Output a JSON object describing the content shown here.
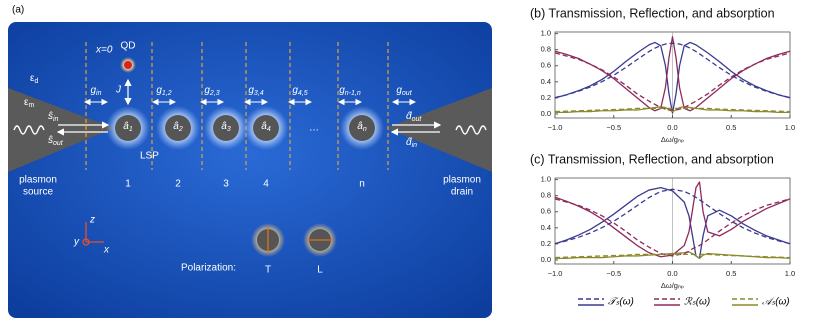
{
  "diagram": {
    "panel_label": "(a)",
    "x0": "x=0",
    "qd": "QD",
    "j": "J",
    "eps_d": {
      "main": "ε",
      "sub": "d"
    },
    "eps_m": {
      "main": "ε",
      "sub": "m"
    },
    "s_in": {
      "main": "ŝ",
      "sub": "in"
    },
    "s_out": {
      "main": "ŝ",
      "sub": "out"
    },
    "couplings": [
      {
        "main": "g",
        "sub": "in"
      },
      {
        "main": "g",
        "sub": "1,2"
      },
      {
        "main": "g",
        "sub": "2,3"
      },
      {
        "main": "g",
        "sub": "3,4"
      },
      {
        "main": "g",
        "sub": "4,5"
      },
      {
        "main": "g",
        "sub": "n-1,n"
      },
      {
        "main": "g",
        "sub": "out"
      }
    ],
    "sites": [
      {
        "main": "â",
        "sub": "1"
      },
      {
        "main": "â",
        "sub": "2"
      },
      {
        "main": "â",
        "sub": "3"
      },
      {
        "main": "â",
        "sub": "4"
      },
      {
        "main": "â",
        "sub": "n"
      }
    ],
    "ellipsis": "…",
    "lsp": "LSP",
    "d_out": {
      "main": "d̂",
      "sub": "out"
    },
    "d_in": {
      "main": "d̂",
      "sub": "in"
    },
    "source": [
      "plasmon",
      "source"
    ],
    "drain": [
      "plasmon",
      "drain"
    ],
    "site_numbers": [
      "1",
      "2",
      "3",
      "4",
      "n"
    ],
    "axes": {
      "z": "z",
      "y": "y",
      "x": "x"
    },
    "polarization": "Polarization:",
    "pol_t": "T",
    "pol_l": "L"
  },
  "chart_data": [
    {
      "type": "line",
      "title": "(b) Transmission, Reflection, and absorption",
      "xlabel": "Δω/gₙₚ",
      "x": [
        -1,
        -0.9,
        -0.8,
        -0.7,
        -0.6,
        -0.5,
        -0.4,
        -0.3,
        -0.2,
        -0.15,
        -0.1,
        -0.06,
        -0.03,
        0,
        0.03,
        0.06,
        0.1,
        0.15,
        0.2,
        0.3,
        0.4,
        0.5,
        0.6,
        0.7,
        0.8,
        0.9,
        1
      ],
      "xlim": [
        -1,
        1
      ],
      "ylim": [
        -0.05,
        1.02
      ],
      "zero_line": true,
      "xticks": [
        {
          "value": -1,
          "label": "−1.0"
        },
        {
          "value": -0.5,
          "label": "−0.5"
        },
        {
          "value": 0,
          "label": "0.0"
        },
        {
          "value": 0.5,
          "label": "0.5"
        },
        {
          "value": 1,
          "label": "1.0"
        }
      ],
      "yticks": [
        {
          "value": 0,
          "label": "0.0"
        },
        0.2,
        0.4,
        0.6,
        0.8,
        {
          "value": 1,
          "label": "1.0"
        }
      ],
      "series": [
        {
          "name": "𝒯ₛ(ω)",
          "color": "#3a3a90",
          "dashed": false,
          "values": [
            0.2,
            0.24,
            0.29,
            0.35,
            0.43,
            0.53,
            0.65,
            0.76,
            0.86,
            0.89,
            0.85,
            0.6,
            0.25,
            0.01,
            0.25,
            0.6,
            0.85,
            0.89,
            0.86,
            0.76,
            0.65,
            0.53,
            0.43,
            0.35,
            0.29,
            0.24,
            0.2
          ]
        },
        {
          "name": "ℛₛ(ω)",
          "color": "#8e2a5c",
          "dashed": false,
          "values": [
            0.78,
            0.74,
            0.69,
            0.62,
            0.54,
            0.44,
            0.32,
            0.2,
            0.08,
            0.04,
            0.07,
            0.33,
            0.7,
            0.96,
            0.7,
            0.33,
            0.07,
            0.04,
            0.08,
            0.2,
            0.32,
            0.44,
            0.54,
            0.62,
            0.69,
            0.74,
            0.78
          ]
        },
        {
          "name": "𝒜ₛ(ω)",
          "color": "#8c8a2e",
          "dashed": false,
          "values": [
            0.02,
            0.02,
            0.03,
            0.03,
            0.04,
            0.04,
            0.05,
            0.05,
            0.07,
            0.08,
            0.09,
            0.08,
            0.05,
            0.03,
            0.05,
            0.08,
            0.09,
            0.08,
            0.07,
            0.05,
            0.05,
            0.04,
            0.04,
            0.03,
            0.03,
            0.02,
            0.02
          ]
        },
        {
          "color": "#3a3a90",
          "dashed": true,
          "values": [
            0.204,
            0.239,
            0.282,
            0.336,
            0.402,
            0.482,
            0.576,
            0.678,
            0.777,
            0.819,
            0.852,
            0.87,
            0.877,
            0.88,
            0.877,
            0.87,
            0.852,
            0.819,
            0.777,
            0.678,
            0.576,
            0.482,
            0.402,
            0.336,
            0.282,
            0.239,
            0.204
          ]
        },
        {
          "color": "#8e2a5c",
          "dashed": true,
          "values": [
            0.76,
            0.72,
            0.68,
            0.62,
            0.55,
            0.46,
            0.36,
            0.25,
            0.16,
            0.12,
            0.08,
            0.06,
            0.05,
            0.05,
            0.05,
            0.06,
            0.08,
            0.12,
            0.16,
            0.25,
            0.36,
            0.46,
            0.55,
            0.62,
            0.68,
            0.72,
            0.76
          ]
        },
        {
          "color": "#8c8a2e",
          "dashed": true,
          "values": [
            0.03,
            0.035,
            0.04,
            0.045,
            0.05,
            0.055,
            0.06,
            0.07,
            0.07,
            0.07,
            0.07,
            0.07,
            0.07,
            0.07,
            0.07,
            0.07,
            0.07,
            0.07,
            0.07,
            0.07,
            0.06,
            0.055,
            0.05,
            0.045,
            0.04,
            0.035,
            0.03
          ]
        }
      ]
    },
    {
      "type": "line",
      "title": "(c) Transmission, Reflection, and absorption",
      "xlabel": "Δω/gₙₚ",
      "x": [
        -1,
        -0.9,
        -0.8,
        -0.7,
        -0.6,
        -0.5,
        -0.4,
        -0.3,
        -0.2,
        -0.1,
        0,
        0.1,
        0.14,
        0.17,
        0.2,
        0.23,
        0.26,
        0.3,
        0.4,
        0.5,
        0.6,
        0.7,
        0.8,
        0.9,
        1
      ],
      "xlim": [
        -1,
        1
      ],
      "ylim": [
        -0.05,
        1.02
      ],
      "zero_line": true,
      "xticks": [
        {
          "value": -1,
          "label": "−1.0"
        },
        {
          "value": -0.5,
          "label": "−0.5"
        },
        {
          "value": 0,
          "label": "0.0"
        },
        {
          "value": 0.5,
          "label": "0.5"
        },
        {
          "value": 1,
          "label": "1.0"
        }
      ],
      "yticks": [
        {
          "value": 0,
          "label": "0.0"
        },
        0.2,
        0.4,
        0.6,
        0.8,
        {
          "value": 1,
          "label": "1.0"
        }
      ],
      "series": [
        {
          "color": "#3a3a90",
          "dashed": false,
          "values": [
            0.2,
            0.25,
            0.31,
            0.38,
            0.47,
            0.57,
            0.68,
            0.79,
            0.87,
            0.9,
            0.86,
            0.72,
            0.55,
            0.3,
            0.05,
            0.02,
            0.3,
            0.55,
            0.62,
            0.55,
            0.45,
            0.37,
            0.3,
            0.25,
            0.2
          ]
        },
        {
          "color": "#8e2a5c",
          "dashed": false,
          "values": [
            0.78,
            0.73,
            0.67,
            0.6,
            0.51,
            0.4,
            0.29,
            0.18,
            0.09,
            0.04,
            0.06,
            0.18,
            0.35,
            0.62,
            0.9,
            0.97,
            0.6,
            0.35,
            0.3,
            0.38,
            0.48,
            0.56,
            0.64,
            0.7,
            0.76
          ]
        },
        {
          "color": "#8c8a2e",
          "dashed": false,
          "values": [
            0.02,
            0.02,
            0.03,
            0.03,
            0.03,
            0.04,
            0.05,
            0.05,
            0.06,
            0.07,
            0.08,
            0.09,
            0.1,
            0.08,
            0.05,
            0.02,
            0.06,
            0.08,
            0.07,
            0.06,
            0.05,
            0.04,
            0.03,
            0.03,
            0.02
          ]
        },
        {
          "color": "#3a3a90",
          "dashed": true,
          "values": [
            0.204,
            0.239,
            0.282,
            0.336,
            0.402,
            0.482,
            0.576,
            0.678,
            0.777,
            0.852,
            0.88,
            0.852,
            0.826,
            0.803,
            0.777,
            0.749,
            0.719,
            0.678,
            0.576,
            0.482,
            0.402,
            0.336,
            0.282,
            0.239,
            0.204
          ]
        },
        {
          "color": "#8e2a5c",
          "dashed": true,
          "values": [
            0.76,
            0.72,
            0.68,
            0.62,
            0.55,
            0.46,
            0.36,
            0.25,
            0.16,
            0.08,
            0.05,
            0.08,
            0.11,
            0.14,
            0.16,
            0.18,
            0.21,
            0.25,
            0.36,
            0.46,
            0.55,
            0.62,
            0.68,
            0.72,
            0.76
          ]
        },
        {
          "color": "#8c8a2e",
          "dashed": true,
          "values": [
            0.03,
            0.035,
            0.04,
            0.045,
            0.05,
            0.055,
            0.06,
            0.07,
            0.07,
            0.07,
            0.07,
            0.07,
            0.07,
            0.07,
            0.07,
            0.07,
            0.07,
            0.07,
            0.06,
            0.055,
            0.05,
            0.045,
            0.04,
            0.035,
            0.03
          ]
        }
      ]
    }
  ]
}
